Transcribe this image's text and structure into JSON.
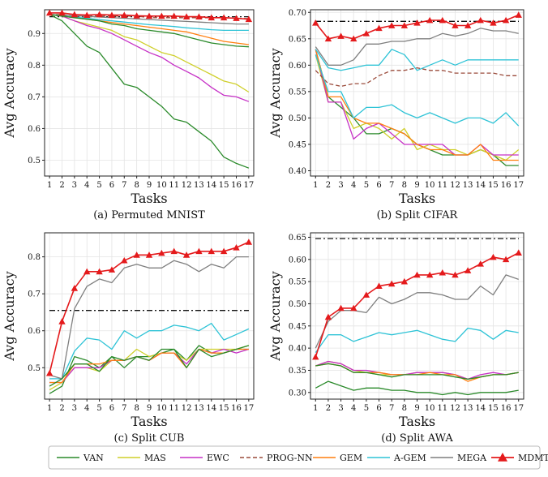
{
  "legend": [
    {
      "key": "VAN",
      "label": "VAN",
      "color": "#2a8a2a",
      "dash": "none",
      "marker": "none"
    },
    {
      "key": "MAS",
      "label": "MAS",
      "color": "#cfcf2a",
      "dash": "none",
      "marker": "none"
    },
    {
      "key": "EWC",
      "label": "EWC",
      "color": "#c630c6",
      "dash": "none",
      "marker": "none"
    },
    {
      "key": "PROG-NN",
      "label": "PROG-NN",
      "color": "#9a4a3a",
      "dash": "dashed",
      "marker": "none"
    },
    {
      "key": "GEM",
      "label": "GEM",
      "color": "#ff7f0e",
      "dash": "none",
      "marker": "none"
    },
    {
      "key": "A-GEM",
      "label": "A-GEM",
      "color": "#2ec3d6",
      "dash": "none",
      "marker": "none"
    },
    {
      "key": "MEGA",
      "label": "MEGA",
      "color": "#7f7f7f",
      "dash": "none",
      "marker": "none"
    },
    {
      "key": "MDMT-R",
      "label": "MDMT-R",
      "color": "#e41a1c",
      "dash": "none",
      "marker": "triangle"
    }
  ],
  "chart_data": [
    {
      "type": "line",
      "caption": "(a) Permuted MNIST",
      "xlabel": "Tasks",
      "ylabel": "Avg Accuracy",
      "x": [
        1,
        2,
        3,
        4,
        5,
        6,
        7,
        8,
        9,
        10,
        11,
        12,
        13,
        14,
        15,
        16,
        17
      ],
      "ylim": [
        0.45,
        0.975
      ],
      "yticks": [
        0.5,
        0.6,
        0.7,
        0.8,
        0.9
      ],
      "ytick_labels": [
        "0.5",
        "0.6",
        "0.7",
        "0.8",
        "0.9"
      ],
      "grid": true,
      "series": [
        {
          "name": "VAN",
          "values": [
            0.96,
            0.94,
            0.9,
            0.86,
            0.84,
            0.79,
            0.74,
            0.73,
            0.7,
            0.67,
            0.63,
            0.62,
            0.59,
            0.56,
            0.51,
            0.49,
            0.475
          ]
        },
        {
          "name": "MAS",
          "values": [
            0.96,
            0.955,
            0.94,
            0.93,
            0.92,
            0.91,
            0.89,
            0.88,
            0.86,
            0.84,
            0.83,
            0.81,
            0.79,
            0.77,
            0.75,
            0.74,
            0.715
          ]
        },
        {
          "name": "EWC",
          "values": [
            0.96,
            0.955,
            0.94,
            0.925,
            0.915,
            0.9,
            0.88,
            0.86,
            0.84,
            0.825,
            0.8,
            0.78,
            0.76,
            0.73,
            0.705,
            0.7,
            0.685
          ]
        },
        {
          "name": "PROG-NN",
          "values": [
            0.96,
            0.96,
            0.955,
            0.955,
            0.955,
            0.955,
            0.955,
            0.955,
            0.95,
            0.95,
            0.95,
            0.95,
            0.95,
            0.95,
            0.95,
            0.948,
            0.947
          ]
        },
        {
          "name": "GEM",
          "values": [
            0.96,
            0.955,
            0.95,
            0.945,
            0.94,
            0.935,
            0.93,
            0.925,
            0.92,
            0.915,
            0.91,
            0.905,
            0.895,
            0.885,
            0.875,
            0.87,
            0.865
          ]
        },
        {
          "name": "A-GEM",
          "values": [
            0.96,
            0.955,
            0.952,
            0.948,
            0.944,
            0.94,
            0.936,
            0.932,
            0.928,
            0.925,
            0.922,
            0.918,
            0.915,
            0.912,
            0.91,
            0.91,
            0.91
          ]
        },
        {
          "name": "MEGA",
          "values": [
            0.96,
            0.958,
            0.956,
            0.954,
            0.952,
            0.95,
            0.948,
            0.946,
            0.944,
            0.942,
            0.94,
            0.938,
            0.936,
            0.934,
            0.932,
            0.93,
            0.93
          ]
        },
        {
          "name": "VAN",
          "values": [
            0.96,
            0.955,
            0.95,
            0.945,
            0.94,
            0.93,
            0.925,
            0.915,
            0.91,
            0.905,
            0.9,
            0.89,
            0.88,
            0.87,
            0.865,
            0.86,
            0.858
          ]
        },
        {
          "name": "MDMT-R",
          "values": [
            0.965,
            0.965,
            0.96,
            0.958,
            0.96,
            0.958,
            0.958,
            0.956,
            0.955,
            0.955,
            0.955,
            0.953,
            0.953,
            0.95,
            0.95,
            0.948,
            0.945
          ]
        }
      ],
      "baseline": 0.953
    },
    {
      "type": "line",
      "caption": "(b) Split CIFAR",
      "xlabel": "Tasks",
      "ylabel": "Avg Accuracy",
      "x": [
        1,
        2,
        3,
        4,
        5,
        6,
        7,
        8,
        9,
        10,
        11,
        12,
        13,
        14,
        15,
        16,
        17
      ],
      "ylim": [
        0.39,
        0.705
      ],
      "yticks": [
        0.4,
        0.45,
        0.5,
        0.55,
        0.6,
        0.65,
        0.7
      ],
      "ytick_labels": [
        "0.40",
        "0.45",
        "0.50",
        "0.55",
        "0.60",
        "0.65",
        "0.70"
      ],
      "grid": true,
      "series": [
        {
          "name": "VAN",
          "values": [
            0.63,
            0.54,
            0.52,
            0.5,
            0.47,
            0.47,
            0.48,
            0.47,
            0.45,
            0.44,
            0.43,
            0.43,
            0.43,
            0.44,
            0.43,
            0.41,
            0.41
          ]
        },
        {
          "name": "MAS",
          "values": [
            0.62,
            0.53,
            0.53,
            0.48,
            0.49,
            0.48,
            0.46,
            0.48,
            0.44,
            0.45,
            0.44,
            0.44,
            0.43,
            0.44,
            0.43,
            0.42,
            0.44
          ]
        },
        {
          "name": "EWC",
          "values": [
            0.63,
            0.53,
            0.53,
            0.46,
            0.48,
            0.49,
            0.47,
            0.45,
            0.45,
            0.45,
            0.45,
            0.43,
            0.43,
            0.45,
            0.43,
            0.43,
            0.43
          ]
        },
        {
          "name": "PROG-NN",
          "values": [
            0.59,
            0.565,
            0.56,
            0.565,
            0.565,
            0.58,
            0.59,
            0.59,
            0.595,
            0.59,
            0.59,
            0.585,
            0.585,
            0.585,
            0.585,
            0.58,
            0.58
          ]
        },
        {
          "name": "GEM",
          "values": [
            0.63,
            0.54,
            0.54,
            0.5,
            0.49,
            0.49,
            0.48,
            0.47,
            0.45,
            0.44,
            0.44,
            0.43,
            0.43,
            0.45,
            0.42,
            0.42,
            0.42
          ]
        },
        {
          "name": "A-GEM",
          "values": [
            0.63,
            0.595,
            0.59,
            0.595,
            0.6,
            0.6,
            0.63,
            0.62,
            0.59,
            0.6,
            0.61,
            0.6,
            0.61,
            0.61,
            0.61,
            0.61,
            0.61
          ]
        },
        {
          "name": "MEGA",
          "values": [
            0.635,
            0.6,
            0.6,
            0.61,
            0.64,
            0.64,
            0.645,
            0.645,
            0.65,
            0.65,
            0.66,
            0.655,
            0.66,
            0.67,
            0.665,
            0.665,
            0.66
          ]
        },
        {
          "name": "A-GEM",
          "values": [
            0.62,
            0.55,
            0.55,
            0.5,
            0.52,
            0.52,
            0.525,
            0.51,
            0.5,
            0.51,
            0.5,
            0.49,
            0.5,
            0.5,
            0.49,
            0.51,
            0.485
          ]
        },
        {
          "name": "MDMT-R",
          "values": [
            0.68,
            0.65,
            0.655,
            0.65,
            0.66,
            0.67,
            0.675,
            0.675,
            0.68,
            0.685,
            0.685,
            0.675,
            0.675,
            0.685,
            0.68,
            0.685,
            0.695
          ]
        }
      ],
      "baseline": 0.683
    },
    {
      "type": "line",
      "caption": "(c) Split CUB",
      "xlabel": "Tasks",
      "ylabel": "Avg Accuracy",
      "x": [
        1,
        2,
        3,
        4,
        5,
        6,
        7,
        8,
        9,
        10,
        11,
        12,
        13,
        14,
        15,
        16,
        17
      ],
      "ylim": [
        0.415,
        0.865
      ],
      "yticks": [
        0.5,
        0.6,
        0.7,
        0.8
      ],
      "ytick_labels": [
        "0.5",
        "0.6",
        "0.7",
        "0.8"
      ],
      "grid": true,
      "series": [
        {
          "name": "VAN",
          "values": [
            0.43,
            0.45,
            0.53,
            0.52,
            0.5,
            0.53,
            0.5,
            0.53,
            0.53,
            0.54,
            0.55,
            0.52,
            0.56,
            0.54,
            0.54,
            0.55,
            0.55
          ]
        },
        {
          "name": "MAS",
          "values": [
            0.44,
            0.46,
            0.5,
            0.5,
            0.49,
            0.52,
            0.52,
            0.55,
            0.53,
            0.54,
            0.54,
            0.52,
            0.55,
            0.55,
            0.55,
            0.55,
            0.56
          ]
        },
        {
          "name": "EWC",
          "values": [
            0.46,
            0.46,
            0.5,
            0.5,
            0.5,
            0.52,
            0.52,
            0.53,
            0.52,
            0.54,
            0.54,
            0.51,
            0.55,
            0.54,
            0.55,
            0.54,
            0.55
          ]
        },
        {
          "name": "GEM",
          "values": [
            0.46,
            0.46,
            0.51,
            0.51,
            0.51,
            0.52,
            0.52,
            0.53,
            0.52,
            0.54,
            0.54,
            0.5,
            0.55,
            0.54,
            0.54,
            0.55,
            0.55
          ]
        },
        {
          "name": "A-GEM",
          "values": [
            0.47,
            0.47,
            0.545,
            0.58,
            0.575,
            0.55,
            0.6,
            0.58,
            0.6,
            0.6,
            0.615,
            0.61,
            0.6,
            0.62,
            0.575,
            0.59,
            0.605
          ]
        },
        {
          "name": "MEGA",
          "values": [
            0.48,
            0.47,
            0.66,
            0.72,
            0.74,
            0.73,
            0.77,
            0.78,
            0.77,
            0.77,
            0.79,
            0.78,
            0.76,
            0.78,
            0.77,
            0.8,
            0.8
          ]
        },
        {
          "name": "VAN",
          "values": [
            0.45,
            0.47,
            0.51,
            0.51,
            0.49,
            0.53,
            0.52,
            0.53,
            0.52,
            0.55,
            0.55,
            0.5,
            0.55,
            0.53,
            0.54,
            0.55,
            0.56
          ]
        },
        {
          "name": "MDMT-R",
          "values": [
            0.485,
            0.625,
            0.715,
            0.76,
            0.76,
            0.765,
            0.79,
            0.805,
            0.805,
            0.81,
            0.815,
            0.805,
            0.815,
            0.815,
            0.815,
            0.825,
            0.84
          ]
        }
      ],
      "baseline": 0.655
    },
    {
      "type": "line",
      "caption": "(d) Split AWA",
      "xlabel": "Tasks",
      "ylabel": "Avg Accuracy",
      "x": [
        1,
        2,
        3,
        4,
        5,
        6,
        7,
        8,
        9,
        10,
        11,
        12,
        13,
        14,
        15,
        16,
        17
      ],
      "ylim": [
        0.285,
        0.66
      ],
      "yticks": [
        0.3,
        0.35,
        0.4,
        0.45,
        0.5,
        0.55,
        0.6,
        0.65
      ],
      "ytick_labels": [
        "0.30",
        "0.35",
        "0.40",
        "0.45",
        "0.50",
        "0.55",
        "0.60",
        "0.65"
      ],
      "grid": true,
      "series": [
        {
          "name": "VAN",
          "values": [
            0.31,
            0.325,
            0.315,
            0.305,
            0.31,
            0.31,
            0.305,
            0.305,
            0.3,
            0.3,
            0.295,
            0.3,
            0.295,
            0.3,
            0.3,
            0.3,
            0.305
          ]
        },
        {
          "name": "MAS",
          "values": [
            0.36,
            0.37,
            0.365,
            0.35,
            0.345,
            0.34,
            0.34,
            0.34,
            0.345,
            0.345,
            0.345,
            0.34,
            0.33,
            0.335,
            0.34,
            0.34,
            0.345
          ]
        },
        {
          "name": "EWC",
          "values": [
            0.36,
            0.37,
            0.365,
            0.35,
            0.35,
            0.345,
            0.34,
            0.34,
            0.345,
            0.345,
            0.345,
            0.34,
            0.33,
            0.34,
            0.345,
            0.34,
            0.345
          ]
        },
        {
          "name": "GEM",
          "values": [
            0.36,
            0.365,
            0.36,
            0.345,
            0.345,
            0.345,
            0.34,
            0.34,
            0.34,
            0.345,
            0.34,
            0.34,
            0.325,
            0.335,
            0.34,
            0.34,
            0.345
          ]
        },
        {
          "name": "A-GEM",
          "values": [
            0.39,
            0.43,
            0.43,
            0.415,
            0.425,
            0.435,
            0.43,
            0.435,
            0.44,
            0.43,
            0.42,
            0.415,
            0.445,
            0.44,
            0.42,
            0.44,
            0.435
          ]
        },
        {
          "name": "MEGA",
          "values": [
            0.4,
            0.46,
            0.485,
            0.485,
            0.48,
            0.515,
            0.5,
            0.51,
            0.525,
            0.525,
            0.52,
            0.51,
            0.51,
            0.54,
            0.52,
            0.565,
            0.555
          ]
        },
        {
          "name": "VAN",
          "values": [
            0.36,
            0.365,
            0.36,
            0.345,
            0.345,
            0.34,
            0.335,
            0.34,
            0.34,
            0.34,
            0.34,
            0.335,
            0.33,
            0.335,
            0.34,
            0.34,
            0.345
          ]
        },
        {
          "name": "MDMT-R",
          "values": [
            0.38,
            0.47,
            0.49,
            0.49,
            0.52,
            0.54,
            0.545,
            0.55,
            0.565,
            0.565,
            0.57,
            0.565,
            0.575,
            0.59,
            0.605,
            0.6,
            0.615
          ]
        }
      ],
      "baseline": 0.647
    }
  ]
}
